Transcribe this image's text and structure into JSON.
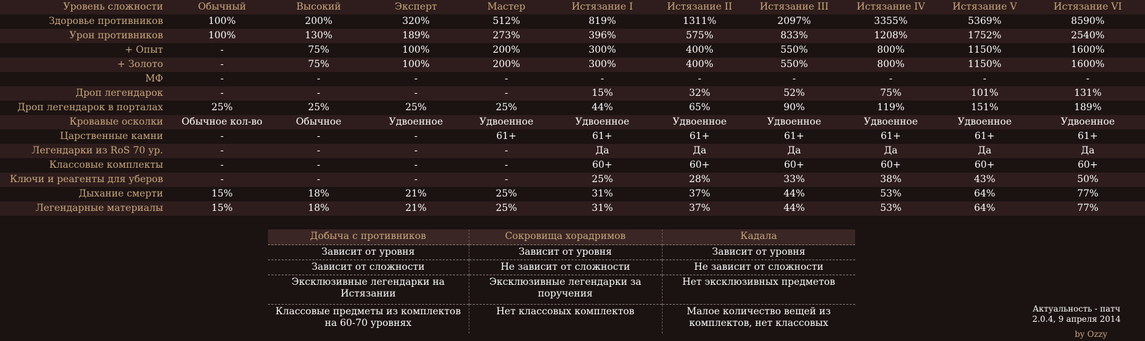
{
  "main_table": {
    "header": {
      "label": "Уровень сложности",
      "columns": [
        "Обычный",
        "Высокий",
        "Эксперт",
        "Мастер",
        "Истязание I",
        "Истязание II",
        "Истязание III",
        "Истязание IV",
        "Истязание V",
        "Истязание VI"
      ]
    },
    "rows": [
      {
        "label": "Здоровье противников",
        "values": [
          "100%",
          "200%",
          "320%",
          "512%",
          "819%",
          "1311%",
          "2097%",
          "3355%",
          "5369%",
          "8590%"
        ]
      },
      {
        "label": "Урон противников",
        "values": [
          "100%",
          "130%",
          "189%",
          "273%",
          "396%",
          "575%",
          "833%",
          "1208%",
          "1752%",
          "2540%"
        ]
      },
      {
        "label": "+ Опыт",
        "values": [
          "-",
          "75%",
          "100%",
          "200%",
          "300%",
          "400%",
          "550%",
          "800%",
          "1150%",
          "1600%"
        ]
      },
      {
        "label": "+ Золото",
        "values": [
          "-",
          "75%",
          "100%",
          "200%",
          "300%",
          "400%",
          "550%",
          "800%",
          "1150%",
          "1600%"
        ]
      },
      {
        "label": "МФ",
        "values": [
          "-",
          "-",
          "-",
          "-",
          "-",
          "-",
          "-",
          "-",
          "-",
          "-"
        ]
      },
      {
        "label": "Дроп легендарок",
        "values": [
          "-",
          "-",
          "-",
          "-",
          "15%",
          "32%",
          "52%",
          "75%",
          "101%",
          "131%"
        ]
      },
      {
        "label": "Дроп легендарок в порталах",
        "values": [
          "25%",
          "25%",
          "25%",
          "25%",
          "44%",
          "65%",
          "90%",
          "119%",
          "151%",
          "189%"
        ]
      },
      {
        "label": "Кровавые осколки",
        "values": [
          "Обычное кол-во",
          "Обычное",
          "Удвоенное",
          "Удвоенное",
          "Удвоенное",
          "Удвоенное",
          "Удвоенное",
          "Удвоенное",
          "Удвоенное",
          "Удвоенное"
        ]
      },
      {
        "label": "Царственные камни",
        "values": [
          "-",
          "-",
          "-",
          "61+",
          "61+",
          "61+",
          "61+",
          "61+",
          "61+",
          "61+"
        ]
      },
      {
        "label": "Легендарки из RoS 70 ур.",
        "values": [
          "-",
          "-",
          "-",
          "-",
          "Да",
          "Да",
          "Да",
          "Да",
          "Да",
          "Да"
        ]
      },
      {
        "label": "Классовые комплекты",
        "values": [
          "-",
          "-",
          "-",
          "-",
          "60+",
          "60+",
          "60+",
          "60+",
          "60+",
          "60+"
        ]
      },
      {
        "label": "Ключи и реагенты для уберов",
        "values": [
          "-",
          "-",
          "-",
          "-",
          "25%",
          "28%",
          "33%",
          "38%",
          "43%",
          "50%"
        ]
      },
      {
        "label": "Дыхание смерти",
        "values": [
          "15%",
          "18%",
          "21%",
          "25%",
          "31%",
          "37%",
          "44%",
          "53%",
          "64%",
          "77%"
        ]
      },
      {
        "label": "Легендарные материалы",
        "values": [
          "15%",
          "18%",
          "21%",
          "25%",
          "31%",
          "37%",
          "44%",
          "53%",
          "64%",
          "77%"
        ]
      }
    ]
  },
  "sub_table": {
    "headers": [
      "Добыча с противников",
      "Сокровища хорадримов",
      "Кадала"
    ],
    "rows": [
      [
        "Зависит от уровня",
        "Зависит от уровня",
        "Зависит от уровня"
      ],
      [
        "Зависит от сложности",
        "Не зависит от сложности",
        "Не зависит от сложности"
      ],
      [
        "Эксклюзивные легендарки на Истязании",
        "Эксклюзивные легендарки за поручения",
        "Нет эксклюзивных предметов"
      ],
      [
        "Классовые предметы из комплектов на 60-70 уровнях",
        "Нет классовых комплектов",
        "Малое количество вещей из комплектов, нет классовых"
      ]
    ]
  },
  "footer": {
    "note_line1": "Актуальность - патч",
    "note_line2": "2.0.4, 9 апреля 2014",
    "author": "by Ozzy"
  }
}
